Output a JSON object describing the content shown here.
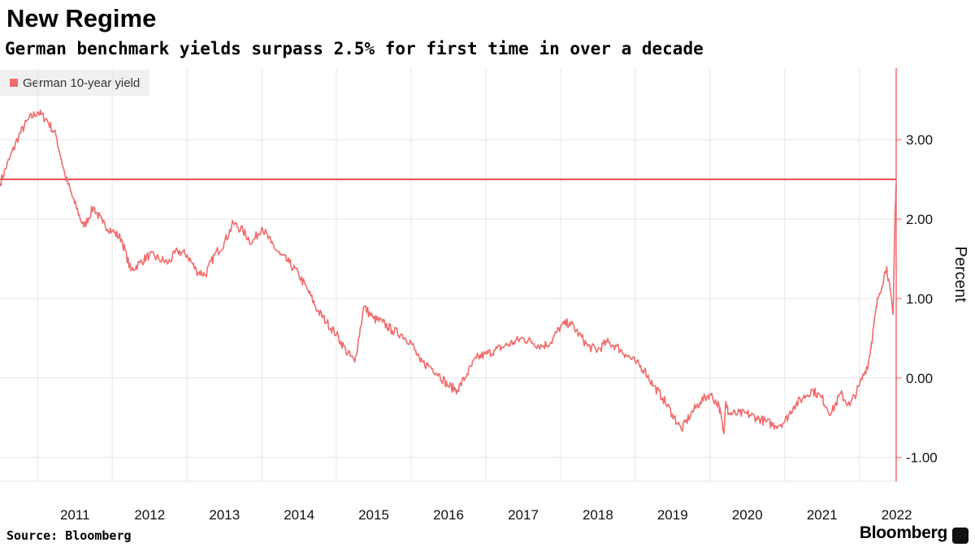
{
  "header": {
    "title": "New Regime",
    "subtitle": "German benchmark yields surpass 2.5% for first time in over a decade"
  },
  "footer": {
    "source": "Source: Bloomberg",
    "brand": "Bloomberg"
  },
  "colors": {
    "series": "#f26b6b",
    "threshold": "#e8505b",
    "grid": "#e6e6e6",
    "axis": "#f26b6b"
  },
  "chart_data": {
    "type": "line",
    "title": "New Regime",
    "subtitle": "German benchmark yields surpass 2.5% for first time in over a decade",
    "ylabel": "Percent",
    "xlabel": "",
    "ylim": [
      -1.3,
      3.9
    ],
    "xlim": [
      "2010-07-01",
      "2022-06-30"
    ],
    "y_ticks": [
      3.0,
      2.0,
      1.0,
      0.0,
      -1.0
    ],
    "y_tick_labels": [
      "3.00",
      "2.00",
      "1.00",
      "0.00",
      "-1.00"
    ],
    "x_tick_labels": [
      "2011",
      "2012",
      "2013",
      "2014",
      "2015",
      "2016",
      "2017",
      "2018",
      "2019",
      "2020",
      "2021",
      "2022"
    ],
    "grid": true,
    "legend": {
      "position": "top-left",
      "entries": [
        "German 10-year yield"
      ]
    },
    "reference_line": {
      "y": 2.5
    },
    "series": [
      {
        "name": "German 10-year yield",
        "x": [
          "2010-07-01",
          "2010-08-15",
          "2010-10-01",
          "2010-11-15",
          "2011-01-01",
          "2011-02-15",
          "2011-04-01",
          "2011-05-15",
          "2011-07-01",
          "2011-08-15",
          "2011-10-01",
          "2011-11-15",
          "2012-01-01",
          "2012-02-15",
          "2012-04-01",
          "2012-05-15",
          "2012-07-01",
          "2012-08-15",
          "2012-10-01",
          "2012-11-15",
          "2013-01-01",
          "2013-02-15",
          "2013-04-01",
          "2013-05-15",
          "2013-07-01",
          "2013-08-15",
          "2013-10-01",
          "2013-11-15",
          "2014-01-01",
          "2014-02-15",
          "2014-04-01",
          "2014-05-15",
          "2014-07-01",
          "2014-08-15",
          "2014-10-01",
          "2014-11-15",
          "2015-01-01",
          "2015-02-15",
          "2015-04-01",
          "2015-05-15",
          "2015-07-01",
          "2015-08-15",
          "2015-10-01",
          "2015-11-15",
          "2016-01-01",
          "2016-02-15",
          "2016-04-01",
          "2016-05-15",
          "2016-07-01",
          "2016-08-15",
          "2016-10-01",
          "2016-11-15",
          "2017-01-01",
          "2017-02-15",
          "2017-04-01",
          "2017-05-15",
          "2017-07-01",
          "2017-08-15",
          "2017-10-01",
          "2017-11-15",
          "2018-01-01",
          "2018-02-15",
          "2018-04-01",
          "2018-05-15",
          "2018-07-01",
          "2018-08-15",
          "2018-10-01",
          "2018-11-15",
          "2019-01-01",
          "2019-02-15",
          "2019-04-01",
          "2019-05-15",
          "2019-07-01",
          "2019-08-15",
          "2019-10-01",
          "2019-11-15",
          "2020-01-01",
          "2020-02-15",
          "2020-03-09",
          "2020-03-18",
          "2020-04-01",
          "2020-05-15",
          "2020-07-01",
          "2020-08-15",
          "2020-10-01",
          "2020-11-15",
          "2021-01-01",
          "2021-02-15",
          "2021-04-01",
          "2021-05-15",
          "2021-07-01",
          "2021-08-15",
          "2021-10-01",
          "2021-11-15",
          "2022-01-01",
          "2022-02-15",
          "2022-03-07",
          "2022-04-01",
          "2022-05-15",
          "2022-06-15",
          "2022-06-24",
          "2022-06-30"
        ],
        "values": [
          2.45,
          2.75,
          3.05,
          3.25,
          3.35,
          3.25,
          3.05,
          2.55,
          2.2,
          1.9,
          2.15,
          1.95,
          1.85,
          1.75,
          1.35,
          1.45,
          1.55,
          1.5,
          1.45,
          1.6,
          1.55,
          1.35,
          1.3,
          1.55,
          1.7,
          1.95,
          1.85,
          1.7,
          1.9,
          1.7,
          1.55,
          1.45,
          1.3,
          1.1,
          0.85,
          0.7,
          0.55,
          0.35,
          0.2,
          0.9,
          0.75,
          0.7,
          0.6,
          0.55,
          0.45,
          0.2,
          0.15,
          0.05,
          -0.1,
          -0.15,
          0.05,
          0.25,
          0.3,
          0.35,
          0.4,
          0.45,
          0.5,
          0.45,
          0.4,
          0.45,
          0.65,
          0.7,
          0.55,
          0.4,
          0.35,
          0.45,
          0.4,
          0.3,
          0.2,
          0.1,
          -0.1,
          -0.25,
          -0.45,
          -0.65,
          -0.45,
          -0.3,
          -0.2,
          -0.35,
          -0.7,
          -0.3,
          -0.45,
          -0.45,
          -0.45,
          -0.5,
          -0.55,
          -0.6,
          -0.55,
          -0.35,
          -0.25,
          -0.15,
          -0.25,
          -0.45,
          -0.2,
          -0.35,
          -0.1,
          0.2,
          0.55,
          1.0,
          1.4,
          0.8,
          2.0,
          2.45
        ]
      }
    ]
  }
}
